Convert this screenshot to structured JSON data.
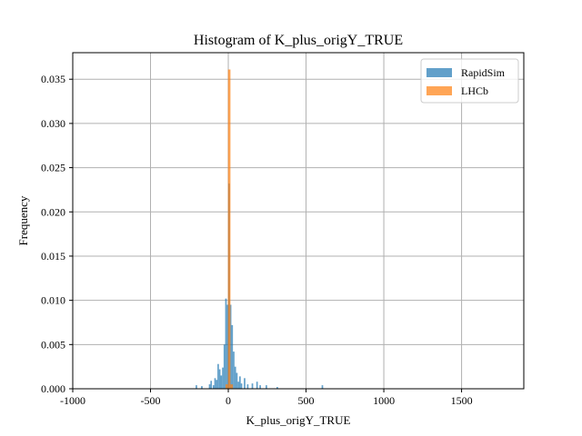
{
  "chart_data": {
    "type": "bar",
    "title": "Histogram of K_plus_origY_TRUE",
    "xlabel": "K_plus_origY_TRUE",
    "ylabel": "Frequency",
    "xlim": [
      -1000,
      1900
    ],
    "ylim": [
      0,
      0.038
    ],
    "grid": true,
    "legend": {
      "position": "top-right"
    },
    "xticks": [
      {
        "value": -1000,
        "label": "-1000"
      },
      {
        "value": -500,
        "label": "-500"
      },
      {
        "value": 0,
        "label": "0"
      },
      {
        "value": 500,
        "label": "500"
      },
      {
        "value": 1000,
        "label": "1000"
      },
      {
        "value": 1500,
        "label": "1500"
      }
    ],
    "yticks": [
      {
        "value": 0.0,
        "label": "0.000"
      },
      {
        "value": 0.005,
        "label": "0.005"
      },
      {
        "value": 0.01,
        "label": "0.010"
      },
      {
        "value": 0.015,
        "label": "0.015"
      },
      {
        "value": 0.02,
        "label": "0.020"
      },
      {
        "value": 0.025,
        "label": "0.025"
      },
      {
        "value": 0.03,
        "label": "0.030"
      },
      {
        "value": 0.035,
        "label": "0.035"
      }
    ],
    "series": [
      {
        "name": "RapidSim",
        "color": "#1f77b4",
        "opacity": 0.7,
        "bins": [
          {
            "x0": -210,
            "x1": -200,
            "y": 0.0004
          },
          {
            "x0": -175,
            "x1": -165,
            "y": 0.0003
          },
          {
            "x0": -125,
            "x1": -115,
            "y": 0.0005
          },
          {
            "x0": -115,
            "x1": -105,
            "y": 0.0009
          },
          {
            "x0": -100,
            "x1": -90,
            "y": 0.0004
          },
          {
            "x0": -90,
            "x1": -80,
            "y": 0.0012
          },
          {
            "x0": -80,
            "x1": -70,
            "y": 0.001
          },
          {
            "x0": -70,
            "x1": -60,
            "y": 0.0028
          },
          {
            "x0": -60,
            "x1": -50,
            "y": 0.0022
          },
          {
            "x0": -50,
            "x1": -40,
            "y": 0.0015
          },
          {
            "x0": -40,
            "x1": -30,
            "y": 0.0024
          },
          {
            "x0": -30,
            "x1": -20,
            "y": 0.005
          },
          {
            "x0": -20,
            "x1": -10,
            "y": 0.0102
          },
          {
            "x0": -10,
            "x1": 0,
            "y": 0.0095
          },
          {
            "x0": 0,
            "x1": 10,
            "y": 0.0232
          },
          {
            "x0": 10,
            "x1": 20,
            "y": 0.0095
          },
          {
            "x0": 20,
            "x1": 30,
            "y": 0.0072
          },
          {
            "x0": 30,
            "x1": 40,
            "y": 0.0042
          },
          {
            "x0": 40,
            "x1": 50,
            "y": 0.0025
          },
          {
            "x0": 50,
            "x1": 60,
            "y": 0.0018
          },
          {
            "x0": 60,
            "x1": 70,
            "y": 0.0008
          },
          {
            "x0": 70,
            "x1": 80,
            "y": 0.0014
          },
          {
            "x0": 80,
            "x1": 90,
            "y": 0.0006
          },
          {
            "x0": 100,
            "x1": 110,
            "y": 0.0012
          },
          {
            "x0": 120,
            "x1": 130,
            "y": 0.0005
          },
          {
            "x0": 150,
            "x1": 160,
            "y": 0.0006
          },
          {
            "x0": 180,
            "x1": 190,
            "y": 0.0008
          },
          {
            "x0": 200,
            "x1": 210,
            "y": 0.0004
          },
          {
            "x0": 240,
            "x1": 250,
            "y": 0.0004
          },
          {
            "x0": 310,
            "x1": 320,
            "y": 0.0002
          },
          {
            "x0": 600,
            "x1": 610,
            "y": 0.0004
          }
        ]
      },
      {
        "name": "LHCb",
        "color": "#ff7f0e",
        "opacity": 0.7,
        "bins": [
          {
            "x0": -18,
            "x1": -2,
            "y": 0.0005
          },
          {
            "x0": -2,
            "x1": 14,
            "y": 0.0361
          },
          {
            "x0": 14,
            "x1": 30,
            "y": 0.0005
          }
        ]
      }
    ]
  }
}
